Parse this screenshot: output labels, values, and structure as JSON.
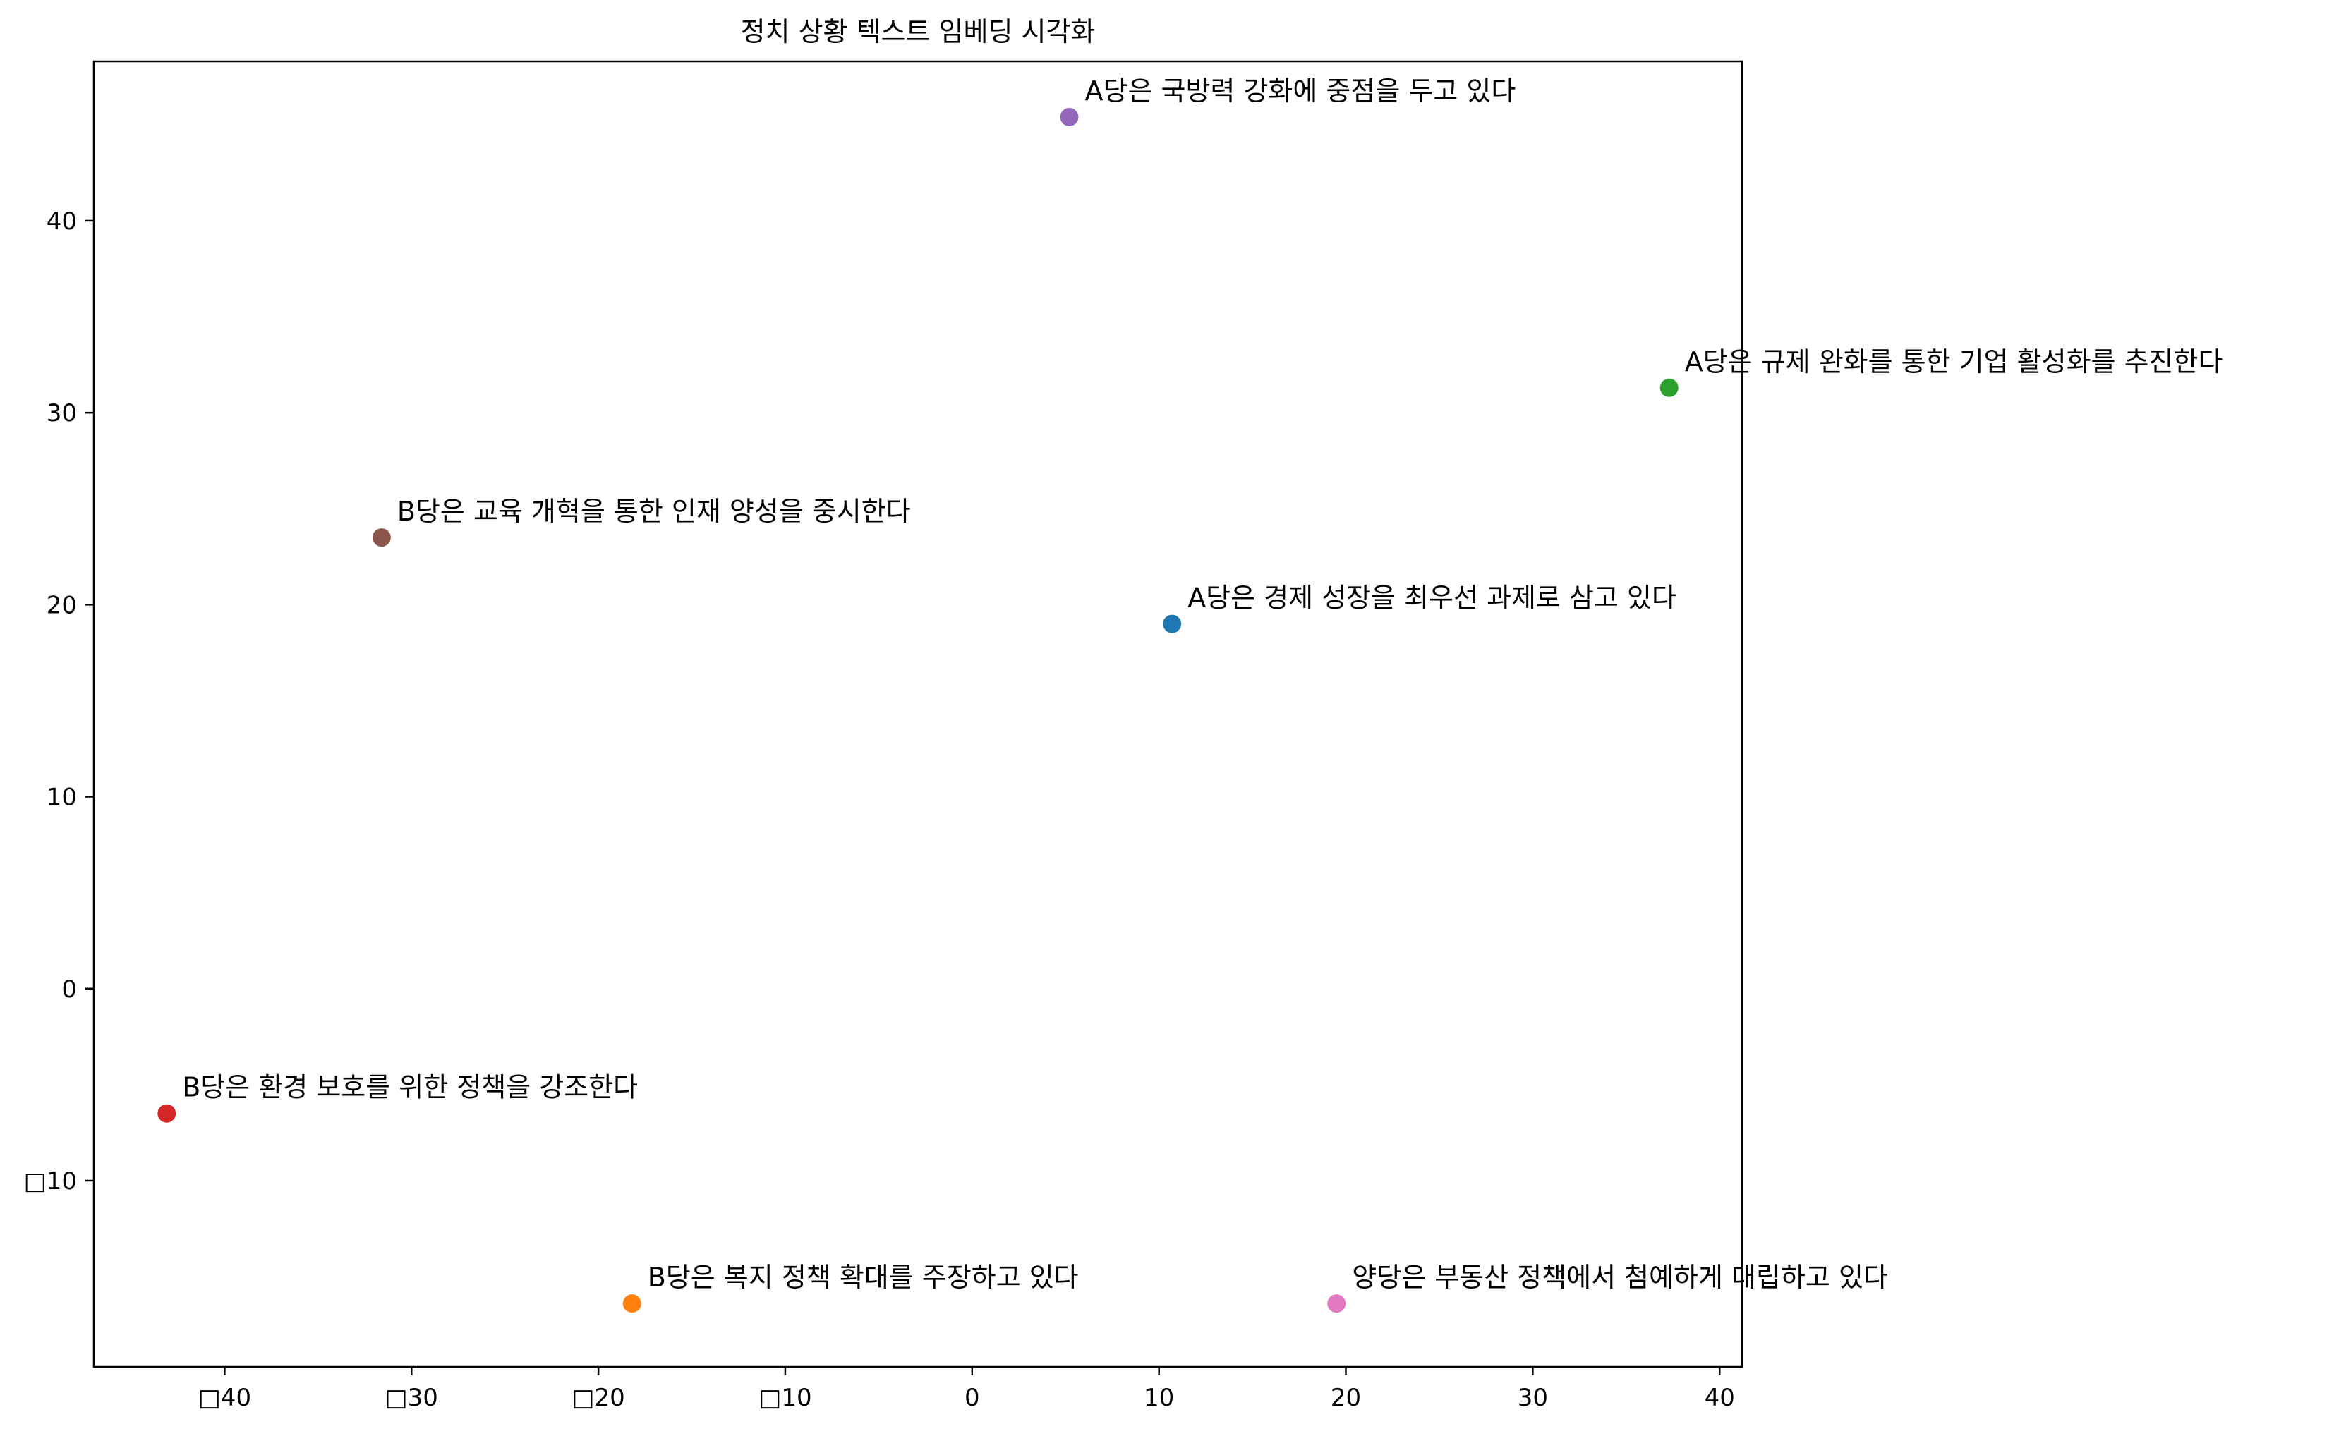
{
  "chart_data": {
    "type": "scatter",
    "title": "정치 상황 텍스트 임베딩 시각화",
    "xlabel": "",
    "ylabel": "",
    "xlim": [
      -47,
      41.2
    ],
    "ylim": [
      -19.7,
      48.3
    ],
    "xticks": [
      -40,
      -30,
      -20,
      -10,
      0,
      10,
      20,
      30,
      40
    ],
    "yticks": [
      -10,
      0,
      10,
      20,
      30,
      40
    ],
    "xtick_labels": [
      "□40",
      "□30",
      "□20",
      "□10",
      "0",
      "10",
      "20",
      "30",
      "40"
    ],
    "ytick_labels": [
      "□10",
      "0",
      "10",
      "20",
      "30",
      "40"
    ],
    "grid": false,
    "points": [
      {
        "x": 10.7,
        "y": 19.0,
        "label": "A당은 경제 성장을 최우선 과제로 삼고 있다",
        "color": "#1f77b4"
      },
      {
        "x": -18.2,
        "y": -16.4,
        "label": "B당은 복지 정책 확대를 주장하고 있다",
        "color": "#ff7f0e"
      },
      {
        "x": 37.3,
        "y": 31.3,
        "label": "A당은 규제 완화를 통한 기업 활성화를 추진한다",
        "color": "#2ca02c"
      },
      {
        "x": -43.1,
        "y": -6.5,
        "label": "B당은 환경 보호를 위한 정책을 강조한다",
        "color": "#d62728"
      },
      {
        "x": 5.2,
        "y": 45.4,
        "label": "A당은 국방력 강화에 중점을 두고 있다",
        "color": "#9467bd"
      },
      {
        "x": -31.6,
        "y": 23.5,
        "label": "B당은 교육 개혁을 통한 인재 양성을 중시한다",
        "color": "#8c564b"
      },
      {
        "x": 19.5,
        "y": -16.4,
        "label": "양당은 부동산 정책에서 첨예하게 대립하고 있다",
        "color": "#e377c2"
      }
    ]
  }
}
